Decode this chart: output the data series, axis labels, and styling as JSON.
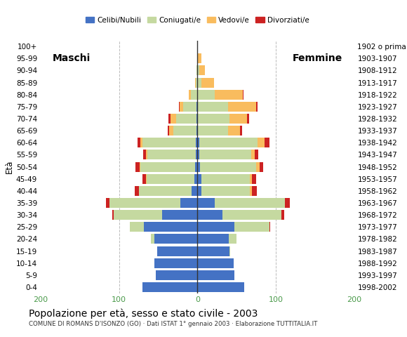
{
  "age_groups": [
    "0-4",
    "5-9",
    "10-14",
    "15-19",
    "20-24",
    "25-29",
    "30-34",
    "35-39",
    "40-44",
    "45-49",
    "50-54",
    "55-59",
    "60-64",
    "65-69",
    "70-74",
    "75-79",
    "80-84",
    "85-89",
    "90-94",
    "95-99",
    "100+"
  ],
  "birth_years": [
    "1998-2002",
    "1993-1997",
    "1988-1992",
    "1983-1987",
    "1978-1982",
    "1973-1977",
    "1968-1972",
    "1963-1967",
    "1958-1962",
    "1953-1957",
    "1948-1952",
    "1943-1947",
    "1938-1942",
    "1933-1937",
    "1928-1932",
    "1923-1927",
    "1918-1922",
    "1913-1917",
    "1908-1912",
    "1903-1907",
    "1902 o prima"
  ],
  "male": {
    "celibe": [
      70,
      53,
      55,
      51,
      55,
      68,
      45,
      22,
      7,
      4,
      3,
      2,
      2,
      1,
      1,
      1,
      0,
      0,
      0,
      0,
      0
    ],
    "coniugato": [
      0,
      0,
      0,
      0,
      4,
      18,
      62,
      90,
      68,
      61,
      70,
      62,
      68,
      30,
      26,
      17,
      8,
      2,
      1,
      0,
      0
    ],
    "vedovo": [
      0,
      0,
      0,
      0,
      0,
      0,
      0,
      0,
      0,
      1,
      1,
      2,
      3,
      5,
      7,
      5,
      3,
      1,
      0,
      0,
      0
    ],
    "divorziato": [
      0,
      0,
      0,
      0,
      0,
      0,
      2,
      5,
      5,
      4,
      5,
      3,
      3,
      2,
      3,
      1,
      0,
      0,
      0,
      0,
      0
    ]
  },
  "female": {
    "nubile": [
      60,
      47,
      46,
      41,
      40,
      47,
      32,
      22,
      5,
      5,
      3,
      2,
      2,
      1,
      1,
      1,
      0,
      0,
      0,
      0,
      0
    ],
    "coniugata": [
      0,
      0,
      0,
      1,
      10,
      45,
      75,
      90,
      62,
      62,
      72,
      67,
      75,
      38,
      40,
      38,
      22,
      5,
      2,
      1,
      0
    ],
    "vedova": [
      0,
      0,
      0,
      0,
      0,
      0,
      0,
      0,
      3,
      3,
      4,
      4,
      9,
      15,
      22,
      36,
      36,
      16,
      8,
      4,
      0
    ],
    "divorziata": [
      0,
      0,
      0,
      0,
      0,
      1,
      4,
      6,
      6,
      5,
      5,
      5,
      6,
      3,
      3,
      2,
      1,
      0,
      0,
      0,
      0
    ]
  },
  "colors": {
    "celibe": "#4472c4",
    "coniugato": "#c5d9a0",
    "vedovo": "#f9bc5e",
    "divorziato": "#cc2222"
  },
  "xlim": [
    -200,
    200
  ],
  "xticks": [
    -200,
    -100,
    0,
    100,
    200
  ],
  "xticklabels": [
    "200",
    "100",
    "0",
    "100",
    "200"
  ],
  "title": "Popolazione per età, sesso e stato civile - 2003",
  "subtitle": "COMUNE DI ROMANS D'ISONZO (GO) · Dati ISTAT 1° gennaio 2003 · Elaborazione TUTTITALIA.IT",
  "ylabel_left": "Età",
  "label_maschi": "Maschi",
  "label_femmine": "Femmine",
  "legend_labels": [
    "Celibi/Nubili",
    "Coniugati/e",
    "Vedovi/e",
    "Divorziati/e"
  ],
  "bg_color": "#ffffff",
  "bar_height": 0.82
}
